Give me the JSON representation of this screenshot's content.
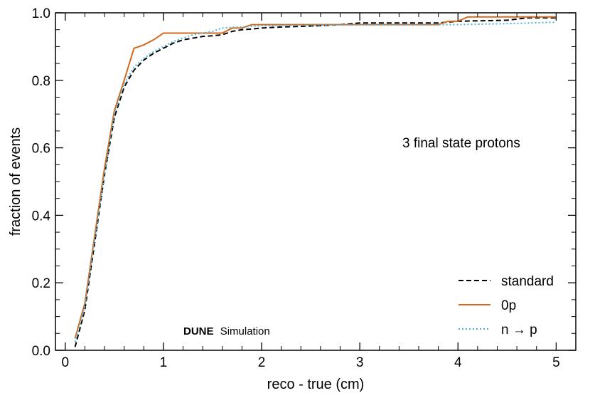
{
  "chart_data": {
    "type": "line",
    "title": "",
    "xlabel": "reco - true (cm)",
    "ylabel": "fraction of events",
    "xlim": [
      -0.1,
      5.2
    ],
    "ylim": [
      0.0,
      1.0
    ],
    "xticks": [
      0,
      1,
      2,
      3,
      4,
      5
    ],
    "yticks": [
      0.0,
      0.2,
      0.4,
      0.6,
      0.8,
      1.0
    ],
    "xtick_labels": [
      "0",
      "1",
      "2",
      "3",
      "4",
      "5"
    ],
    "ytick_labels": [
      "0.0",
      "0.2",
      "0.4",
      "0.6",
      "0.8",
      "1.0"
    ],
    "grid": false,
    "legend_position": "bottom-right",
    "annotation": "3 final state protons",
    "watermark": {
      "bold": "DUNE",
      "rest": "Simulation"
    },
    "series": [
      {
        "name": "standard",
        "color": "#000000",
        "style": "dashed",
        "x": [
          0.1,
          0.2,
          0.3,
          0.4,
          0.5,
          0.6,
          0.7,
          0.8,
          0.9,
          1.0,
          1.1,
          1.2,
          1.3,
          1.4,
          1.5,
          1.6,
          1.7,
          1.8,
          1.9,
          2.0,
          2.2,
          2.4,
          2.6,
          2.8,
          3.0,
          3.5,
          3.8,
          4.0,
          4.5,
          4.7,
          5.0
        ],
        "y": [
          0.01,
          0.12,
          0.32,
          0.52,
          0.69,
          0.78,
          0.83,
          0.86,
          0.88,
          0.895,
          0.91,
          0.92,
          0.925,
          0.93,
          0.932,
          0.935,
          0.945,
          0.95,
          0.952,
          0.955,
          0.958,
          0.96,
          0.962,
          0.965,
          0.97,
          0.97,
          0.97,
          0.975,
          0.978,
          0.985,
          0.985
        ]
      },
      {
        "name": "0p",
        "color": "#d4691e",
        "style": "solid",
        "x": [
          0.1,
          0.2,
          0.3,
          0.4,
          0.5,
          0.6,
          0.7,
          0.8,
          0.9,
          1.0,
          1.2,
          1.4,
          1.6,
          1.7,
          1.8,
          1.9,
          2.0,
          2.5,
          3.0,
          3.5,
          3.8,
          3.9,
          4.0,
          4.1,
          4.5,
          5.0
        ],
        "y": [
          0.035,
          0.14,
          0.34,
          0.54,
          0.71,
          0.8,
          0.895,
          0.905,
          0.92,
          0.94,
          0.94,
          0.94,
          0.94,
          0.955,
          0.955,
          0.965,
          0.965,
          0.965,
          0.965,
          0.965,
          0.965,
          0.975,
          0.975,
          0.988,
          0.988,
          0.988
        ]
      },
      {
        "name": "n → p",
        "color": "#4ab4d8",
        "style": "dotted",
        "x": [
          0.1,
          0.2,
          0.3,
          0.4,
          0.5,
          0.6,
          0.7,
          0.8,
          0.9,
          1.0,
          1.1,
          1.2,
          1.3,
          1.4,
          1.5,
          1.6,
          1.7,
          1.8,
          2.0,
          2.5,
          3.0,
          3.5,
          4.0,
          4.5,
          5.0
        ],
        "y": [
          0.025,
          0.13,
          0.33,
          0.52,
          0.7,
          0.79,
          0.84,
          0.865,
          0.885,
          0.9,
          0.915,
          0.925,
          0.935,
          0.94,
          0.945,
          0.955,
          0.957,
          0.958,
          0.962,
          0.963,
          0.965,
          0.965,
          0.965,
          0.968,
          0.972
        ]
      }
    ]
  }
}
